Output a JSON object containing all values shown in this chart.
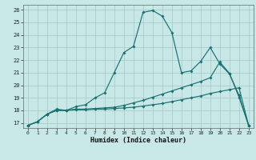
{
  "xlabel": "Humidex (Indice chaleur)",
  "bg_color": "#c8e8e8",
  "grid_color": "#a8cccc",
  "line_color": "#1a7070",
  "xlim_min": -0.5,
  "xlim_max": 23.5,
  "ylim_min": 16.6,
  "ylim_max": 26.4,
  "xticks": [
    0,
    1,
    2,
    3,
    4,
    5,
    6,
    7,
    8,
    9,
    10,
    11,
    12,
    13,
    14,
    15,
    16,
    17,
    18,
    19,
    20,
    21,
    22,
    23
  ],
  "yticks": [
    17,
    18,
    19,
    20,
    21,
    22,
    23,
    24,
    25,
    26
  ],
  "line1_x": [
    0,
    1,
    2,
    3,
    4,
    5,
    6,
    7,
    8,
    9,
    10,
    11,
    12,
    13,
    14,
    15,
    16,
    17,
    18,
    19,
    20,
    21,
    22,
    23
  ],
  "line1_y": [
    16.8,
    17.1,
    17.7,
    18.1,
    18.0,
    18.3,
    18.45,
    19.0,
    19.4,
    21.0,
    22.6,
    23.1,
    25.8,
    25.95,
    25.5,
    24.2,
    21.0,
    21.15,
    21.9,
    23.0,
    21.7,
    20.9,
    19.2,
    16.8
  ],
  "line2_x": [
    0,
    1,
    2,
    3,
    4,
    5,
    6,
    7,
    8,
    9,
    10,
    11,
    12,
    13,
    14,
    15,
    16,
    17,
    18,
    19,
    20,
    21,
    22,
    23
  ],
  "line2_y": [
    16.8,
    17.1,
    17.7,
    18.0,
    18.0,
    18.1,
    18.1,
    18.15,
    18.2,
    18.25,
    18.4,
    18.6,
    18.8,
    19.05,
    19.3,
    19.55,
    19.8,
    20.05,
    20.3,
    20.6,
    21.85,
    20.95,
    19.05,
    16.8
  ],
  "line3_x": [
    0,
    1,
    2,
    3,
    4,
    5,
    6,
    7,
    8,
    9,
    10,
    11,
    12,
    13,
    14,
    15,
    16,
    17,
    18,
    19,
    20,
    21,
    22,
    23
  ],
  "line3_y": [
    16.8,
    17.1,
    17.7,
    18.0,
    18.0,
    18.05,
    18.05,
    18.1,
    18.1,
    18.15,
    18.2,
    18.25,
    18.35,
    18.45,
    18.55,
    18.7,
    18.85,
    19.0,
    19.15,
    19.35,
    19.5,
    19.65,
    19.8,
    16.8
  ]
}
